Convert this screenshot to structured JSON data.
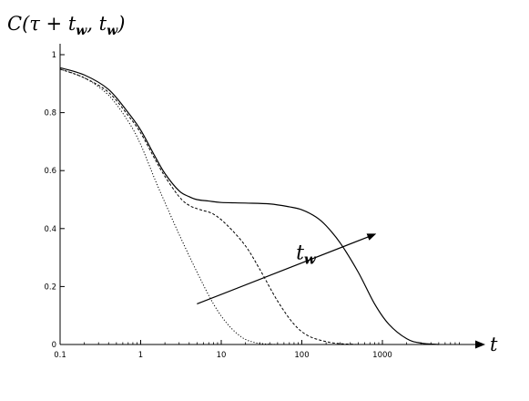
{
  "chart_data": {
    "type": "line",
    "title": "",
    "ylabel": "C(τ + t_w, t_w)",
    "ylabel_parts": {
      "main": "C(τ + t",
      "sub1": "w",
      "mid": ", t",
      "sub2": "w",
      "end": ")"
    },
    "xlabel": "t",
    "x_scale": "log",
    "xlim": [
      0.1,
      10000
    ],
    "ylim": [
      0,
      1
    ],
    "x_ticks": [
      {
        "value": 0.1,
        "label": "0.1"
      },
      {
        "value": 1,
        "label": "1"
      },
      {
        "value": 10,
        "label": "10"
      },
      {
        "value": 100,
        "label": "100"
      },
      {
        "value": 1000,
        "label": "1000"
      }
    ],
    "y_ticks": [
      {
        "value": 0,
        "label": "0"
      },
      {
        "value": 0.2,
        "label": "0.2"
      },
      {
        "value": 0.4,
        "label": "0.4"
      },
      {
        "value": 0.6,
        "label": "0.6"
      },
      {
        "value": 0.8,
        "label": "0.8"
      },
      {
        "value": 1,
        "label": "1"
      }
    ],
    "grid": false,
    "series": [
      {
        "style": "dotted",
        "x": [
          0.1,
          0.2,
          0.4,
          0.7,
          1.0,
          1.5,
          2.0,
          3.0,
          5.0,
          8.0,
          12.0,
          18.0,
          25.0,
          35.0,
          50.0
        ],
        "y": [
          0.95,
          0.92,
          0.86,
          0.77,
          0.69,
          0.57,
          0.49,
          0.38,
          0.25,
          0.14,
          0.07,
          0.025,
          0.008,
          0.002,
          0.0
        ]
      },
      {
        "style": "dashed",
        "x": [
          0.1,
          0.2,
          0.4,
          0.7,
          1.0,
          1.5,
          2.0,
          3.0,
          4.0,
          5.5,
          8.0,
          12.0,
          20.0,
          30.0,
          50.0,
          80.0,
          120.0,
          200.0,
          300.0,
          500.0
        ],
        "y": [
          0.95,
          0.92,
          0.87,
          0.79,
          0.73,
          0.64,
          0.58,
          0.51,
          0.48,
          0.465,
          0.45,
          0.41,
          0.34,
          0.26,
          0.15,
          0.07,
          0.03,
          0.01,
          0.003,
          0.0
        ]
      },
      {
        "style": "solid",
        "x": [
          0.1,
          0.2,
          0.4,
          0.7,
          1.0,
          1.5,
          2.0,
          3.0,
          4.0,
          5.0,
          7.0,
          10.0,
          20.0,
          40.0,
          70.0,
          100.0,
          150.0,
          200.0,
          300.0,
          500.0,
          800.0,
          1200.0,
          2000.0,
          3000.0,
          5000.0
        ],
        "y": [
          0.955,
          0.93,
          0.88,
          0.8,
          0.74,
          0.65,
          0.59,
          0.53,
          0.51,
          0.5,
          0.495,
          0.49,
          0.488,
          0.485,
          0.475,
          0.465,
          0.44,
          0.41,
          0.35,
          0.25,
          0.14,
          0.07,
          0.02,
          0.005,
          0.0
        ]
      }
    ],
    "annotations": [
      {
        "type": "arrow",
        "label": "t_w",
        "label_parts": {
          "main": "t",
          "sub": "w"
        },
        "from": {
          "x": 5,
          "y": 0.14
        },
        "to": {
          "x": 800,
          "y": 0.38
        },
        "label_at": {
          "x": 150,
          "y": 0.3
        }
      }
    ]
  }
}
